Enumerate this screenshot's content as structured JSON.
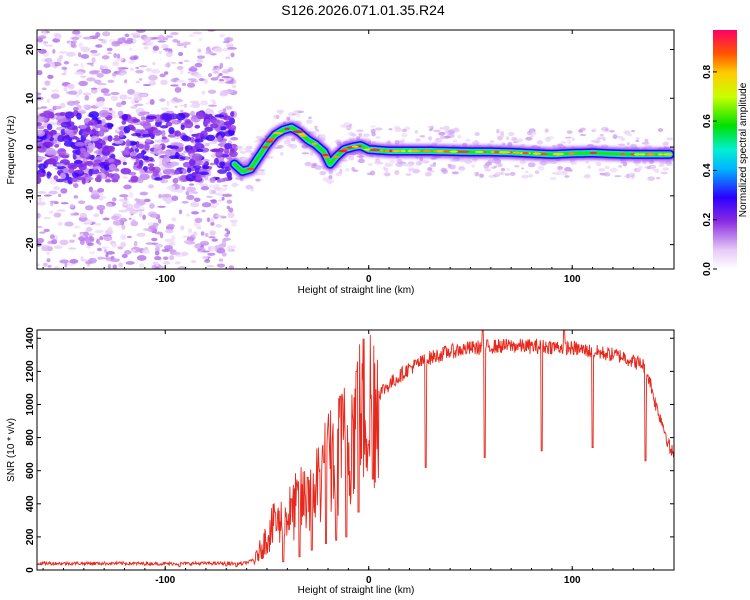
{
  "figure": {
    "title": "S126.2026.071.01.35.R24"
  },
  "chart_data": [
    {
      "type": "heatmap",
      "panel": "spectrogram",
      "xlabel": "Height of straight line (km)",
      "ylabel": "Frequency (Hz)",
      "xlim": [
        -163,
        150
      ],
      "ylim": [
        -25,
        24
      ],
      "xticks": [
        -100,
        0,
        100
      ],
      "yticks": [
        -20,
        -10,
        0,
        10,
        20
      ],
      "colorbar": {
        "label": "Normalized spectral amplitude",
        "range": [
          0,
          0.97
        ],
        "ticks": [
          "0.0",
          "0.2",
          "0.4",
          "0.6",
          "0.8"
        ],
        "tick_values": [
          0,
          0.2,
          0.4,
          0.6,
          0.8
        ]
      },
      "ridge": {
        "description": "dominant-tone frequency track",
        "x": [
          -66,
          -62,
          -58,
          -54,
          -50,
          -46,
          -42,
          -38,
          -34,
          -30,
          -26,
          -22,
          -19,
          -16,
          -12,
          -8,
          -4,
          0,
          10,
          20,
          30,
          40,
          50,
          60,
          70,
          80,
          90,
          100,
          110,
          120,
          130,
          140,
          148
        ],
        "y": [
          -3.5,
          -5.0,
          -4.5,
          -2.0,
          0.5,
          2.5,
          3.5,
          4.0,
          3.0,
          1.5,
          0.5,
          -1.0,
          -3.5,
          -2.0,
          -0.5,
          0.0,
          0.3,
          -0.5,
          -0.8,
          -0.8,
          -0.8,
          -0.9,
          -1.0,
          -1.0,
          -1.1,
          -1.3,
          -1.5,
          -1.3,
          -1.2,
          -1.4,
          -1.5,
          -1.5,
          -1.5
        ]
      },
      "noise_region": {
        "x_range": [
          -163,
          -66
        ],
        "amplitude_range": [
          0.02,
          0.25
        ]
      }
    },
    {
      "type": "line",
      "panel": "snr",
      "xlabel": "Height of straight line (km)",
      "ylabel": "SNR (10 * v/v)",
      "xlim": [
        -163,
        150
      ],
      "ylim": [
        0,
        1450
      ],
      "xticks": [
        -100,
        0,
        100
      ],
      "yticks": [
        0,
        200,
        400,
        600,
        800,
        1000,
        1200,
        1400
      ],
      "color": "#e8281c",
      "series": [
        {
          "name": "SNR",
          "x": [
            -163,
            -140,
            -120,
            -100,
            -80,
            -70,
            -62,
            -56,
            -52,
            -48,
            -44,
            -40,
            -36,
            -32,
            -28,
            -24,
            -20,
            -16,
            -12,
            -8,
            -4,
            0,
            5,
            10,
            15,
            20,
            25,
            30,
            40,
            50,
            60,
            70,
            80,
            90,
            100,
            110,
            115,
            120,
            125,
            130,
            135,
            138,
            141,
            144,
            146,
            148,
            150
          ],
          "y": [
            40,
            40,
            40,
            38,
            40,
            40,
            38,
            60,
            150,
            250,
            280,
            330,
            380,
            420,
            480,
            560,
            620,
            680,
            750,
            850,
            930,
            1000,
            1070,
            1120,
            1170,
            1220,
            1250,
            1280,
            1320,
            1340,
            1350,
            1355,
            1350,
            1350,
            1340,
            1320,
            1310,
            1300,
            1290,
            1260,
            1240,
            1150,
            1000,
            900,
            820,
            730,
            700
          ]
        }
      ],
      "dips": {
        "x": [
          -93,
          -70,
          -65,
          -42,
          -34,
          -28,
          -21,
          -16,
          -11,
          -5,
          2,
          28,
          57,
          85,
          110,
          136
        ],
        "y": [
          20,
          25,
          20,
          50,
          80,
          120,
          160,
          180,
          200,
          350,
          550,
          620,
          680,
          720,
          740,
          660
        ]
      },
      "spikes": {
        "x": [
          -46,
          -38,
          -30,
          -22,
          -14,
          -6,
          56,
          96
        ],
        "y": [
          350,
          430,
          560,
          650,
          1050,
          1200,
          1445,
          1450
        ]
      }
    }
  ]
}
